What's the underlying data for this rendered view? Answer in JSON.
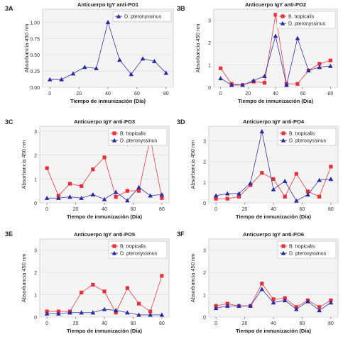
{
  "chart_data": [
    {
      "type": "line",
      "panel_label": "3A",
      "title": "Anticuerpo IgY anti-PO1",
      "xlabel": "Tiempo de inmunización (Día)",
      "ylabel": "Absorbancia 450 nm",
      "xlim": [
        -5,
        85
      ],
      "ylim": [
        0,
        1.2
      ],
      "xticks": [
        0,
        20,
        40,
        60,
        80
      ],
      "yticks": [
        0.0,
        0.25,
        0.5,
        0.75,
        1.0
      ],
      "ytick_labels": [
        "0.00",
        "0.25",
        "0.50",
        "0.75",
        "1.00"
      ],
      "legend_position": "top-right",
      "series": [
        {
          "name": "D. pteronyssinus",
          "color": "#2a2aa6",
          "marker": "triangle",
          "x": [
            0,
            8,
            16,
            24,
            32,
            40,
            48,
            56,
            64,
            72,
            80
          ],
          "y": [
            0.12,
            0.12,
            0.21,
            0.31,
            0.29,
            1.0,
            0.42,
            0.2,
            0.44,
            0.4,
            0.22
          ]
        }
      ]
    },
    {
      "type": "line",
      "panel_label": "3B",
      "title": "Anticuerpo IgY anti-PO2",
      "xlabel": "Tiempo de inmunización (Día)",
      "ylabel": "Absorbancia 450 nm",
      "xlim": [
        -5,
        85
      ],
      "ylim": [
        0,
        3.5
      ],
      "xticks": [
        0,
        20,
        40,
        60,
        80
      ],
      "yticks": [
        0,
        1,
        2,
        3
      ],
      "ytick_labels": [
        "0",
        "1",
        "2",
        "3"
      ],
      "legend_position": "top-right",
      "series": [
        {
          "name": "B. tropicalis",
          "color": "#e8303a",
          "marker": "square",
          "x": [
            0,
            8,
            16,
            24,
            32,
            40,
            48,
            56,
            64,
            72,
            80
          ],
          "y": [
            0.85,
            0.15,
            0.1,
            0.25,
            0.2,
            3.25,
            0.15,
            0.15,
            0.75,
            1.05,
            1.2
          ]
        },
        {
          "name": "D. pteronyssinus",
          "color": "#2a2aa6",
          "marker": "triangle",
          "x": [
            0,
            8,
            16,
            24,
            32,
            40,
            48,
            56,
            64,
            72,
            80
          ],
          "y": [
            0.4,
            0.1,
            0.1,
            0.3,
            0.5,
            2.3,
            0.1,
            2.2,
            0.75,
            0.9,
            0.95
          ]
        }
      ]
    },
    {
      "type": "line",
      "panel_label": "3C",
      "title": "Anticuerpo IgY anti-PO3",
      "xlabel": "Tiempo de inmunización (Día)",
      "ylabel": "Absorbancia 450 nm",
      "xlim": [
        -5,
        85
      ],
      "ylim": [
        0,
        3.2
      ],
      "xticks": [
        0,
        20,
        40,
        60,
        80
      ],
      "yticks": [
        0,
        1,
        2,
        3
      ],
      "ytick_labels": [
        "0",
        "1",
        "2",
        "3"
      ],
      "legend_position": "top-right",
      "series": [
        {
          "name": "B. tropicalis",
          "color": "#e8303a",
          "marker": "square",
          "x": [
            0,
            8,
            16,
            24,
            32,
            40,
            48,
            56,
            64,
            72,
            80
          ],
          "y": [
            1.45,
            0.3,
            0.8,
            0.7,
            1.4,
            1.9,
            0.25,
            0.5,
            0.5,
            2.7,
            0.2
          ]
        },
        {
          "name": "D. pteronyssinus",
          "color": "#2a2aa6",
          "marker": "triangle",
          "x": [
            0,
            8,
            16,
            24,
            32,
            40,
            48,
            56,
            64,
            72,
            80
          ],
          "y": [
            0.2,
            0.2,
            0.25,
            0.2,
            0.35,
            0.15,
            0.45,
            0.1,
            0.65,
            0.3,
            0.35
          ]
        }
      ]
    },
    {
      "type": "line",
      "panel_label": "3D",
      "title": "Anticuerpo IgY anti-PO4",
      "xlabel": "Tiempo de inmunización (Día)",
      "ylabel": "Absorbancia 450 nm",
      "xlim": [
        -5,
        85
      ],
      "ylim": [
        0,
        3.7
      ],
      "xticks": [
        0,
        20,
        40,
        60,
        80
      ],
      "yticks": [
        0,
        1,
        2,
        3
      ],
      "ytick_labels": [
        "0",
        "1",
        "2",
        "3"
      ],
      "legend_position": "top-right",
      "series": [
        {
          "name": "B. tropicalis",
          "color": "#e8303a",
          "marker": "square",
          "x": [
            0,
            8,
            16,
            24,
            32,
            40,
            48,
            56,
            64,
            72,
            80
          ],
          "y": [
            0.2,
            0.2,
            0.3,
            0.85,
            1.45,
            1.15,
            0.3,
            1.4,
            0.55,
            0.3,
            1.75
          ]
        },
        {
          "name": "D. pteronyssinus",
          "color": "#2a2aa6",
          "marker": "triangle",
          "x": [
            0,
            8,
            16,
            24,
            32,
            40,
            48,
            56,
            64,
            72,
            80
          ],
          "y": [
            0.35,
            0.45,
            0.45,
            0.95,
            3.45,
            0.65,
            1.05,
            0.1,
            0.4,
            1.1,
            1.15
          ]
        }
      ]
    },
    {
      "type": "line",
      "panel_label": "3E",
      "title": "Anticuerpo IgY anti-PO5",
      "xlabel": "Tiempo de inmunización (Día)",
      "ylabel": "Absorbancia 450 nm",
      "xlim": [
        -5,
        85
      ],
      "ylim": [
        0,
        3.5
      ],
      "xticks": [
        0,
        20,
        40,
        60,
        80
      ],
      "yticks": [
        0,
        1,
        2,
        3
      ],
      "ytick_labels": [
        "0",
        "1",
        "2",
        "3"
      ],
      "legend_position": "top-right",
      "series": [
        {
          "name": "B. tropicalis",
          "color": "#e8303a",
          "marker": "square",
          "x": [
            0,
            8,
            16,
            24,
            32,
            40,
            48,
            56,
            64,
            72,
            80
          ],
          "y": [
            0.25,
            0.25,
            0.25,
            1.1,
            1.45,
            1.15,
            0.2,
            1.3,
            0.6,
            0.25,
            1.85
          ]
        },
        {
          "name": "D. pteronyssinus",
          "color": "#2a2aa6",
          "marker": "triangle",
          "x": [
            0,
            8,
            16,
            24,
            32,
            40,
            48,
            56,
            64,
            72,
            80
          ],
          "y": [
            0.15,
            0.15,
            0.2,
            0.2,
            0.2,
            0.35,
            0.3,
            0.2,
            0.1,
            0.1,
            0.1
          ]
        }
      ]
    },
    {
      "type": "line",
      "panel_label": "3F",
      "title": "Anticuerpo IgY anti-PO6",
      "xlabel": "Tiempo de inmunización (Día)",
      "ylabel": "Absorbancia 450 nm",
      "xlim": [
        -5,
        85
      ],
      "ylim": [
        0,
        3.5
      ],
      "xticks": [
        0,
        20,
        40,
        60,
        80
      ],
      "yticks": [
        0,
        1,
        2,
        3
      ],
      "ytick_labels": [
        "0",
        "1",
        "2",
        "3"
      ],
      "legend_position": "top-right",
      "series": [
        {
          "name": "B. tropicalis",
          "color": "#e8303a",
          "marker": "square",
          "x": [
            0,
            8,
            16,
            24,
            32,
            40,
            48,
            56,
            64,
            72,
            80
          ],
          "y": [
            0.5,
            0.6,
            0.5,
            0.5,
            1.5,
            0.8,
            0.85,
            0.45,
            0.75,
            0.45,
            0.75
          ]
        },
        {
          "name": "D. pteronyssinus",
          "color": "#2a2aa6",
          "marker": "triangle",
          "x": [
            0,
            8,
            16,
            24,
            32,
            40,
            48,
            56,
            64,
            72,
            80
          ],
          "y": [
            0.4,
            0.5,
            0.5,
            0.5,
            1.25,
            0.65,
            0.75,
            0.35,
            0.7,
            0.3,
            0.65
          ]
        }
      ]
    }
  ]
}
